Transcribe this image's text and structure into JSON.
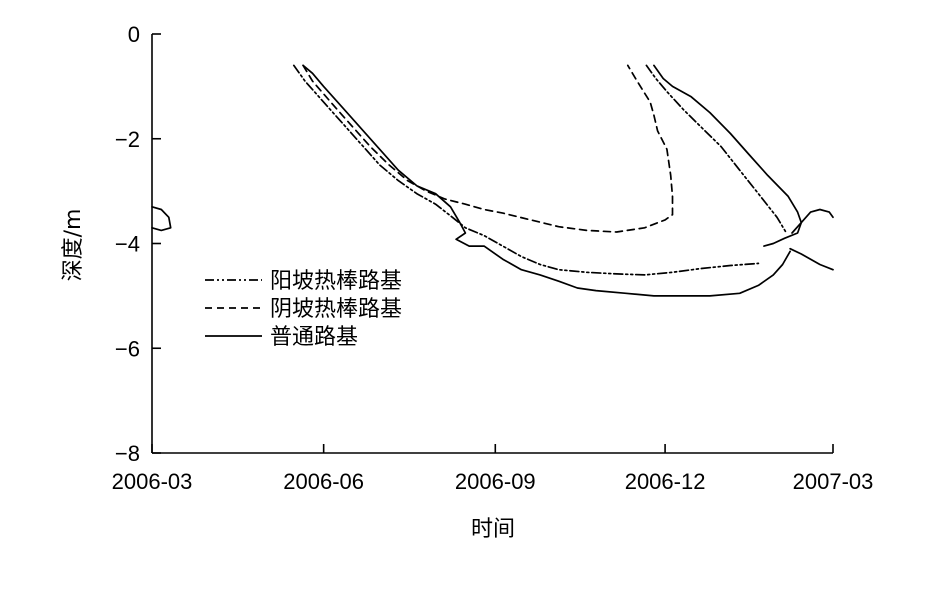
{
  "chart_data": {
    "type": "line",
    "xlabel": "时间",
    "ylabel": "深度/m",
    "ylim": [
      -8,
      0
    ],
    "yticks": [
      0,
      -2,
      -4,
      -6,
      -8
    ],
    "xlim": [
      "2006-03-01",
      "2007-03-01"
    ],
    "xticks": [
      "2006-03",
      "2006-06",
      "2006-09",
      "2006-12",
      "2007-03"
    ],
    "grid": false,
    "legend_position": "center-left",
    "series": [
      {
        "name": "阳坡热棒路基",
        "style": "dash-dot-dot",
        "color": "#000000",
        "segments": [
          [
            [
              "2006-05-16",
              -0.6
            ],
            [
              "2006-05-22",
              -0.9
            ],
            [
              "2006-06-01",
              -1.3
            ],
            [
              "2006-06-11",
              -1.7
            ],
            [
              "2006-06-21",
              -2.1
            ],
            [
              "2006-07-01",
              -2.5
            ],
            [
              "2006-07-11",
              -2.8
            ],
            [
              "2006-07-21",
              -3.05
            ],
            [
              "2006-07-31",
              -3.25
            ],
            [
              "2006-08-09",
              -3.5
            ],
            [
              "2006-08-16",
              -3.7
            ],
            [
              "2006-08-26",
              -3.85
            ],
            [
              "2006-09-05",
              -4.05
            ],
            [
              "2006-09-15",
              -4.25
            ],
            [
              "2006-09-25",
              -4.4
            ],
            [
              "2006-10-05",
              -4.5
            ],
            [
              "2006-10-20",
              -4.55
            ],
            [
              "2006-11-05",
              -4.58
            ],
            [
              "2006-11-20",
              -4.6
            ],
            [
              "2006-12-05",
              -4.55
            ],
            [
              "2006-12-20",
              -4.48
            ],
            [
              "2007-01-05",
              -4.42
            ],
            [
              "2007-01-20",
              -4.38
            ]
          ],
          [
            [
              "2006-11-21",
              -0.6
            ],
            [
              "2006-11-26",
              -0.85
            ],
            [
              "2006-12-02",
              -1.1
            ],
            [
              "2006-12-11",
              -1.45
            ],
            [
              "2006-12-21",
              -1.8
            ],
            [
              "2006-12-31",
              -2.15
            ],
            [
              "2007-01-10",
              -2.6
            ],
            [
              "2007-01-20",
              -3.05
            ],
            [
              "2007-01-30",
              -3.5
            ],
            [
              "2007-02-04",
              -3.8
            ]
          ]
        ]
      },
      {
        "name": "阴坡热棒路基",
        "style": "dashed",
        "color": "#000000",
        "segments": [
          [
            [
              "2006-05-21",
              -0.6
            ],
            [
              "2006-05-26",
              -0.9
            ],
            [
              "2006-06-06",
              -1.35
            ],
            [
              "2006-06-16",
              -1.75
            ],
            [
              "2006-06-26",
              -2.15
            ],
            [
              "2006-07-06",
              -2.5
            ],
            [
              "2006-07-16",
              -2.8
            ],
            [
              "2006-07-26",
              -3.0
            ],
            [
              "2006-08-05",
              -3.15
            ],
            [
              "2006-08-16",
              -3.25
            ],
            [
              "2006-08-26",
              -3.35
            ],
            [
              "2006-09-05",
              -3.42
            ],
            [
              "2006-09-20",
              -3.55
            ],
            [
              "2006-10-05",
              -3.68
            ],
            [
              "2006-10-20",
              -3.75
            ],
            [
              "2006-11-05",
              -3.78
            ],
            [
              "2006-11-20",
              -3.7
            ],
            [
              "2006-12-01",
              -3.55
            ],
            [
              "2006-12-05",
              -3.45
            ],
            [
              "2006-12-05",
              -3.1
            ],
            [
              "2006-12-04",
              -2.7
            ],
            [
              "2006-12-02",
              -2.2
            ],
            [
              "2006-11-27",
              -1.85
            ],
            [
              "2006-11-25",
              -1.55
            ],
            [
              "2006-11-23",
              -1.3
            ],
            [
              "2006-11-16",
              -0.9
            ],
            [
              "2006-11-11",
              -0.6
            ]
          ]
        ]
      },
      {
        "name": "普通路基",
        "style": "solid",
        "color": "#000000",
        "segments": [
          [
            [
              "2006-03-01",
              -3.3
            ],
            [
              "2006-03-06",
              -3.35
            ],
            [
              "2006-03-10",
              -3.5
            ],
            [
              "2006-03-11",
              -3.7
            ],
            [
              "2006-03-06",
              -3.75
            ],
            [
              "2006-03-01",
              -3.7
            ]
          ],
          [
            [
              "2006-05-21",
              -0.6
            ],
            [
              "2006-05-26",
              -0.75
            ],
            [
              "2006-06-01",
              -1.0
            ],
            [
              "2006-06-11",
              -1.4
            ],
            [
              "2006-06-21",
              -1.8
            ],
            [
              "2006-07-01",
              -2.2
            ],
            [
              "2006-07-11",
              -2.6
            ],
            [
              "2006-07-21",
              -2.9
            ],
            [
              "2006-07-31",
              -3.05
            ],
            [
              "2006-08-08",
              -3.3
            ],
            [
              "2006-08-13",
              -3.6
            ],
            [
              "2006-08-16",
              -3.8
            ],
            [
              "2006-08-11",
              -3.92
            ],
            [
              "2006-08-18",
              -4.05
            ],
            [
              "2006-08-26",
              -4.05
            ],
            [
              "2006-09-05",
              -4.3
            ],
            [
              "2006-09-15",
              -4.5
            ],
            [
              "2006-09-25",
              -4.6
            ],
            [
              "2006-10-05",
              -4.72
            ],
            [
              "2006-10-15",
              -4.85
            ],
            [
              "2006-10-25",
              -4.9
            ],
            [
              "2006-11-10",
              -4.95
            ],
            [
              "2006-11-25",
              -5.0
            ],
            [
              "2006-12-10",
              -5.0
            ],
            [
              "2006-12-25",
              -5.0
            ],
            [
              "2007-01-10",
              -4.95
            ],
            [
              "2007-01-20",
              -4.8
            ],
            [
              "2007-01-28",
              -4.6
            ],
            [
              "2007-02-02",
              -4.4
            ],
            [
              "2007-02-06",
              -4.15
            ]
          ],
          [
            [
              "2006-11-25",
              -0.6
            ],
            [
              "2006-11-30",
              -0.85
            ],
            [
              "2006-12-05",
              -1.0
            ],
            [
              "2006-12-15",
              -1.2
            ],
            [
              "2006-12-25",
              -1.5
            ],
            [
              "2007-01-05",
              -1.9
            ],
            [
              "2007-01-15",
              -2.3
            ],
            [
              "2007-01-25",
              -2.7
            ],
            [
              "2007-02-05",
              -3.1
            ],
            [
              "2007-02-10",
              -3.4
            ],
            [
              "2007-02-12",
              -3.6
            ],
            [
              "2007-02-10",
              -3.8
            ],
            [
              "2007-02-03",
              -3.9
            ],
            [
              "2007-01-28",
              -4.0
            ],
            [
              "2007-01-23",
              -4.05
            ]
          ],
          [
            [
              "2007-02-07",
              -3.8
            ],
            [
              "2007-02-12",
              -3.6
            ],
            [
              "2007-02-17",
              -3.4
            ],
            [
              "2007-02-22",
              -3.35
            ],
            [
              "2007-02-27",
              -3.4
            ],
            [
              "2007-03-01",
              -3.5
            ]
          ],
          [
            [
              "2007-02-06",
              -4.1
            ],
            [
              "2007-02-12",
              -4.2
            ],
            [
              "2007-02-17",
              -4.3
            ],
            [
              "2007-02-22",
              -4.4
            ],
            [
              "2007-03-01",
              -4.5
            ]
          ]
        ]
      }
    ]
  }
}
